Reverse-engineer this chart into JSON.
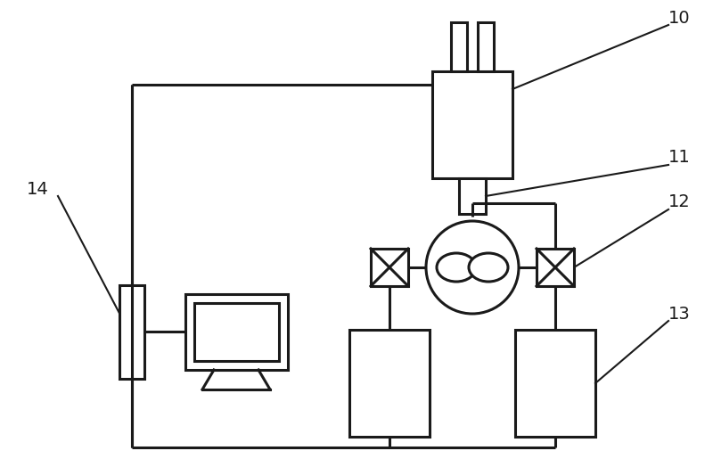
{
  "bg_color": "#ffffff",
  "line_color": "#1a1a1a",
  "lw": 2.2,
  "fig_width": 8.0,
  "fig_height": 5.15,
  "dpi": 100
}
